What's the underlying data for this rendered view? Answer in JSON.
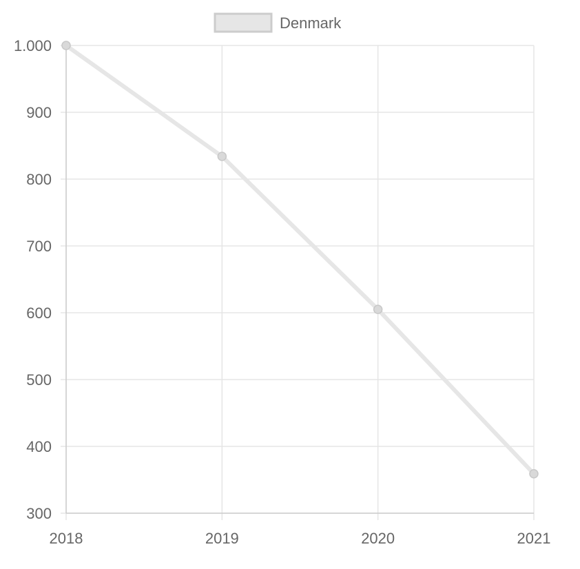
{
  "chart_data": {
    "type": "line",
    "categories": [
      "2018",
      "2019",
      "2020",
      "2021"
    ],
    "series": [
      {
        "name": "Denmark",
        "values": [
          1000,
          834,
          605,
          359
        ]
      }
    ],
    "y_ticks": [
      300,
      400,
      500,
      600,
      700,
      800,
      900,
      1000
    ],
    "y_tick_labels": [
      "300",
      "400",
      "500",
      "600",
      "700",
      "800",
      "900",
      "1.000"
    ],
    "ylim": [
      300,
      1000
    ],
    "grid": true,
    "legend_position": "top",
    "colors": {
      "series_line": "#e6e6e6",
      "series_point": "#d9d9d9",
      "point_stroke": "#c8c8c8",
      "grid": "#e5e5e5",
      "axis": "#cccccc",
      "text": "#666666",
      "legend_box_fill": "#e6e6e6",
      "legend_box_stroke": "#cccccc"
    }
  }
}
